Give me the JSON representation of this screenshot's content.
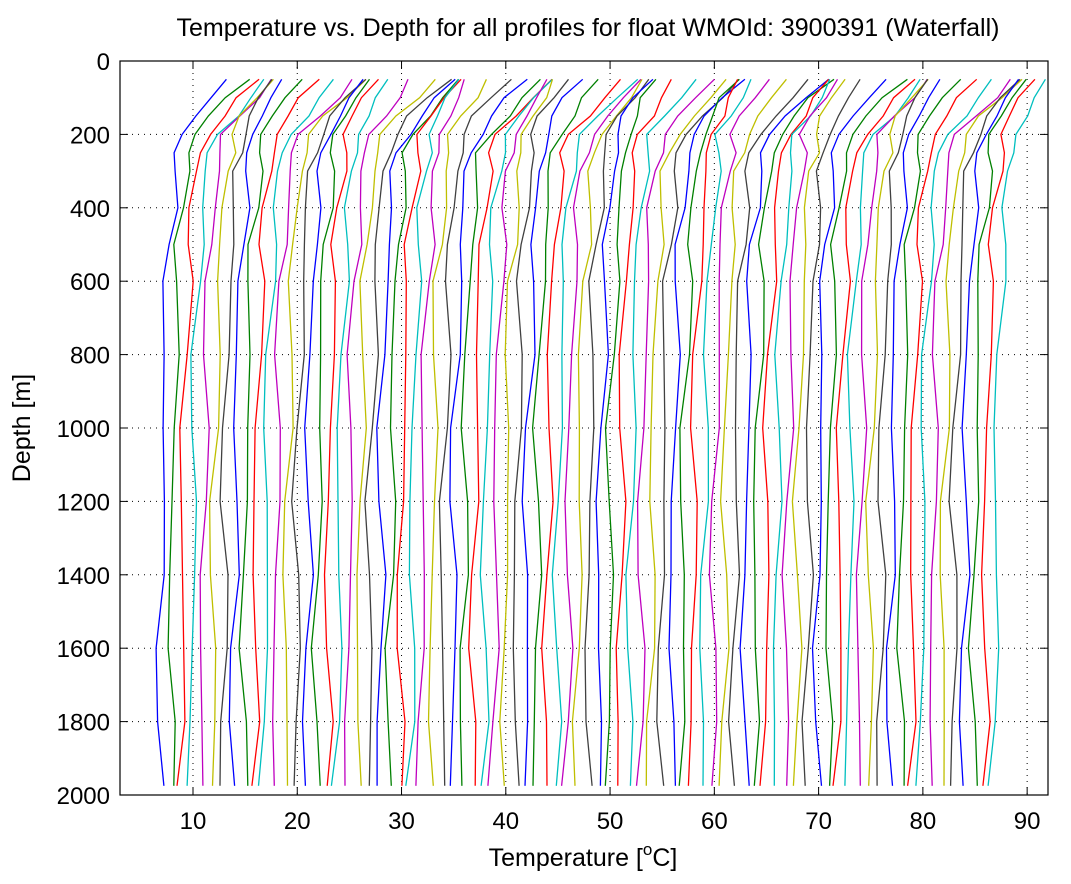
{
  "chart_data": {
    "type": "line",
    "title": "Temperature vs. Depth for all profiles for float WMOId: 3900391 (Waterfall)",
    "xlabel_main": "Temperature [",
    "xlabel_sup": "o",
    "xlabel_end": "C]",
    "ylabel": "Depth [m]",
    "xlim": [
      3,
      92
    ],
    "ylim": [
      0,
      2000
    ],
    "y_reversed": true,
    "grid": true,
    "x_ticks": [
      "10",
      "20",
      "30",
      "40",
      "50",
      "60",
      "70",
      "80",
      "90"
    ],
    "y_ticks": [
      "0",
      "200",
      "400",
      "600",
      "800",
      "1000",
      "1200",
      "1400",
      "1600",
      "1800",
      "2000"
    ],
    "colors": [
      "#0000ff",
      "#008000",
      "#ff0000",
      "#00bfbf",
      "#bf00bf",
      "#bfbf00",
      "#404040"
    ],
    "waterfall_offset_per_profile": 1,
    "depths": [
      50,
      100,
      150,
      200,
      250,
      300,
      400,
      500,
      600,
      800,
      1000,
      1200,
      1400,
      1600,
      1800,
      1975
    ],
    "base_profile_temperature": [
      13,
      11.5,
      10.2,
      9.0,
      8.6,
      8.3,
      8.0,
      7.7,
      7.5,
      7.3,
      7.1,
      7.0,
      7.0,
      6.9,
      6.9,
      6.8
    ],
    "profiles": [
      {
        "offset": 0
      },
      {
        "offset": 1
      },
      {
        "offset": 2
      },
      {
        "offset": 3
      },
      {
        "offset": 4
      },
      {
        "offset": 5
      },
      {
        "offset": 6
      },
      {
        "offset": 7
      },
      {
        "offset": 8
      },
      {
        "offset": 9
      },
      {
        "offset": 10
      },
      {
        "offset": 11
      },
      {
        "offset": 12
      },
      {
        "offset": 13
      },
      {
        "offset": 14
      },
      {
        "offset": 15
      },
      {
        "offset": 16
      },
      {
        "offset": 17
      },
      {
        "offset": 18
      },
      {
        "offset": 19
      },
      {
        "offset": 20
      },
      {
        "offset": 21
      },
      {
        "offset": 22
      },
      {
        "offset": 23
      },
      {
        "offset": 24
      },
      {
        "offset": 25
      },
      {
        "offset": 26
      },
      {
        "offset": 27
      },
      {
        "offset": 28
      },
      {
        "offset": 29
      },
      {
        "offset": 30
      },
      {
        "offset": 31
      },
      {
        "offset": 32
      },
      {
        "offset": 33
      },
      {
        "offset": 34
      },
      {
        "offset": 35
      },
      {
        "offset": 36
      },
      {
        "offset": 37
      },
      {
        "offset": 38
      },
      {
        "offset": 39
      },
      {
        "offset": 40
      },
      {
        "offset": 41
      },
      {
        "offset": 42
      },
      {
        "offset": 43
      },
      {
        "offset": 44
      },
      {
        "offset": 45
      },
      {
        "offset": 46
      },
      {
        "offset": 47
      },
      {
        "offset": 48
      },
      {
        "offset": 49
      },
      {
        "offset": 50
      },
      {
        "offset": 51
      },
      {
        "offset": 52
      },
      {
        "offset": 53
      },
      {
        "offset": 54
      },
      {
        "offset": 55
      },
      {
        "offset": 56
      },
      {
        "offset": 57
      },
      {
        "offset": 58
      },
      {
        "offset": 59
      },
      {
        "offset": 60
      },
      {
        "offset": 61
      },
      {
        "offset": 62
      },
      {
        "offset": 63
      },
      {
        "offset": 64
      },
      {
        "offset": 65
      },
      {
        "offset": 66
      },
      {
        "offset": 67
      },
      {
        "offset": 68
      },
      {
        "offset": 69
      },
      {
        "offset": 70
      },
      {
        "offset": 71
      },
      {
        "offset": 72
      },
      {
        "offset": 73
      },
      {
        "offset": 74
      },
      {
        "offset": 75
      },
      {
        "offset": 76
      },
      {
        "offset": 77
      },
      {
        "offset": 78
      },
      {
        "offset": 79
      },
      {
        "offset": 80
      }
    ]
  }
}
